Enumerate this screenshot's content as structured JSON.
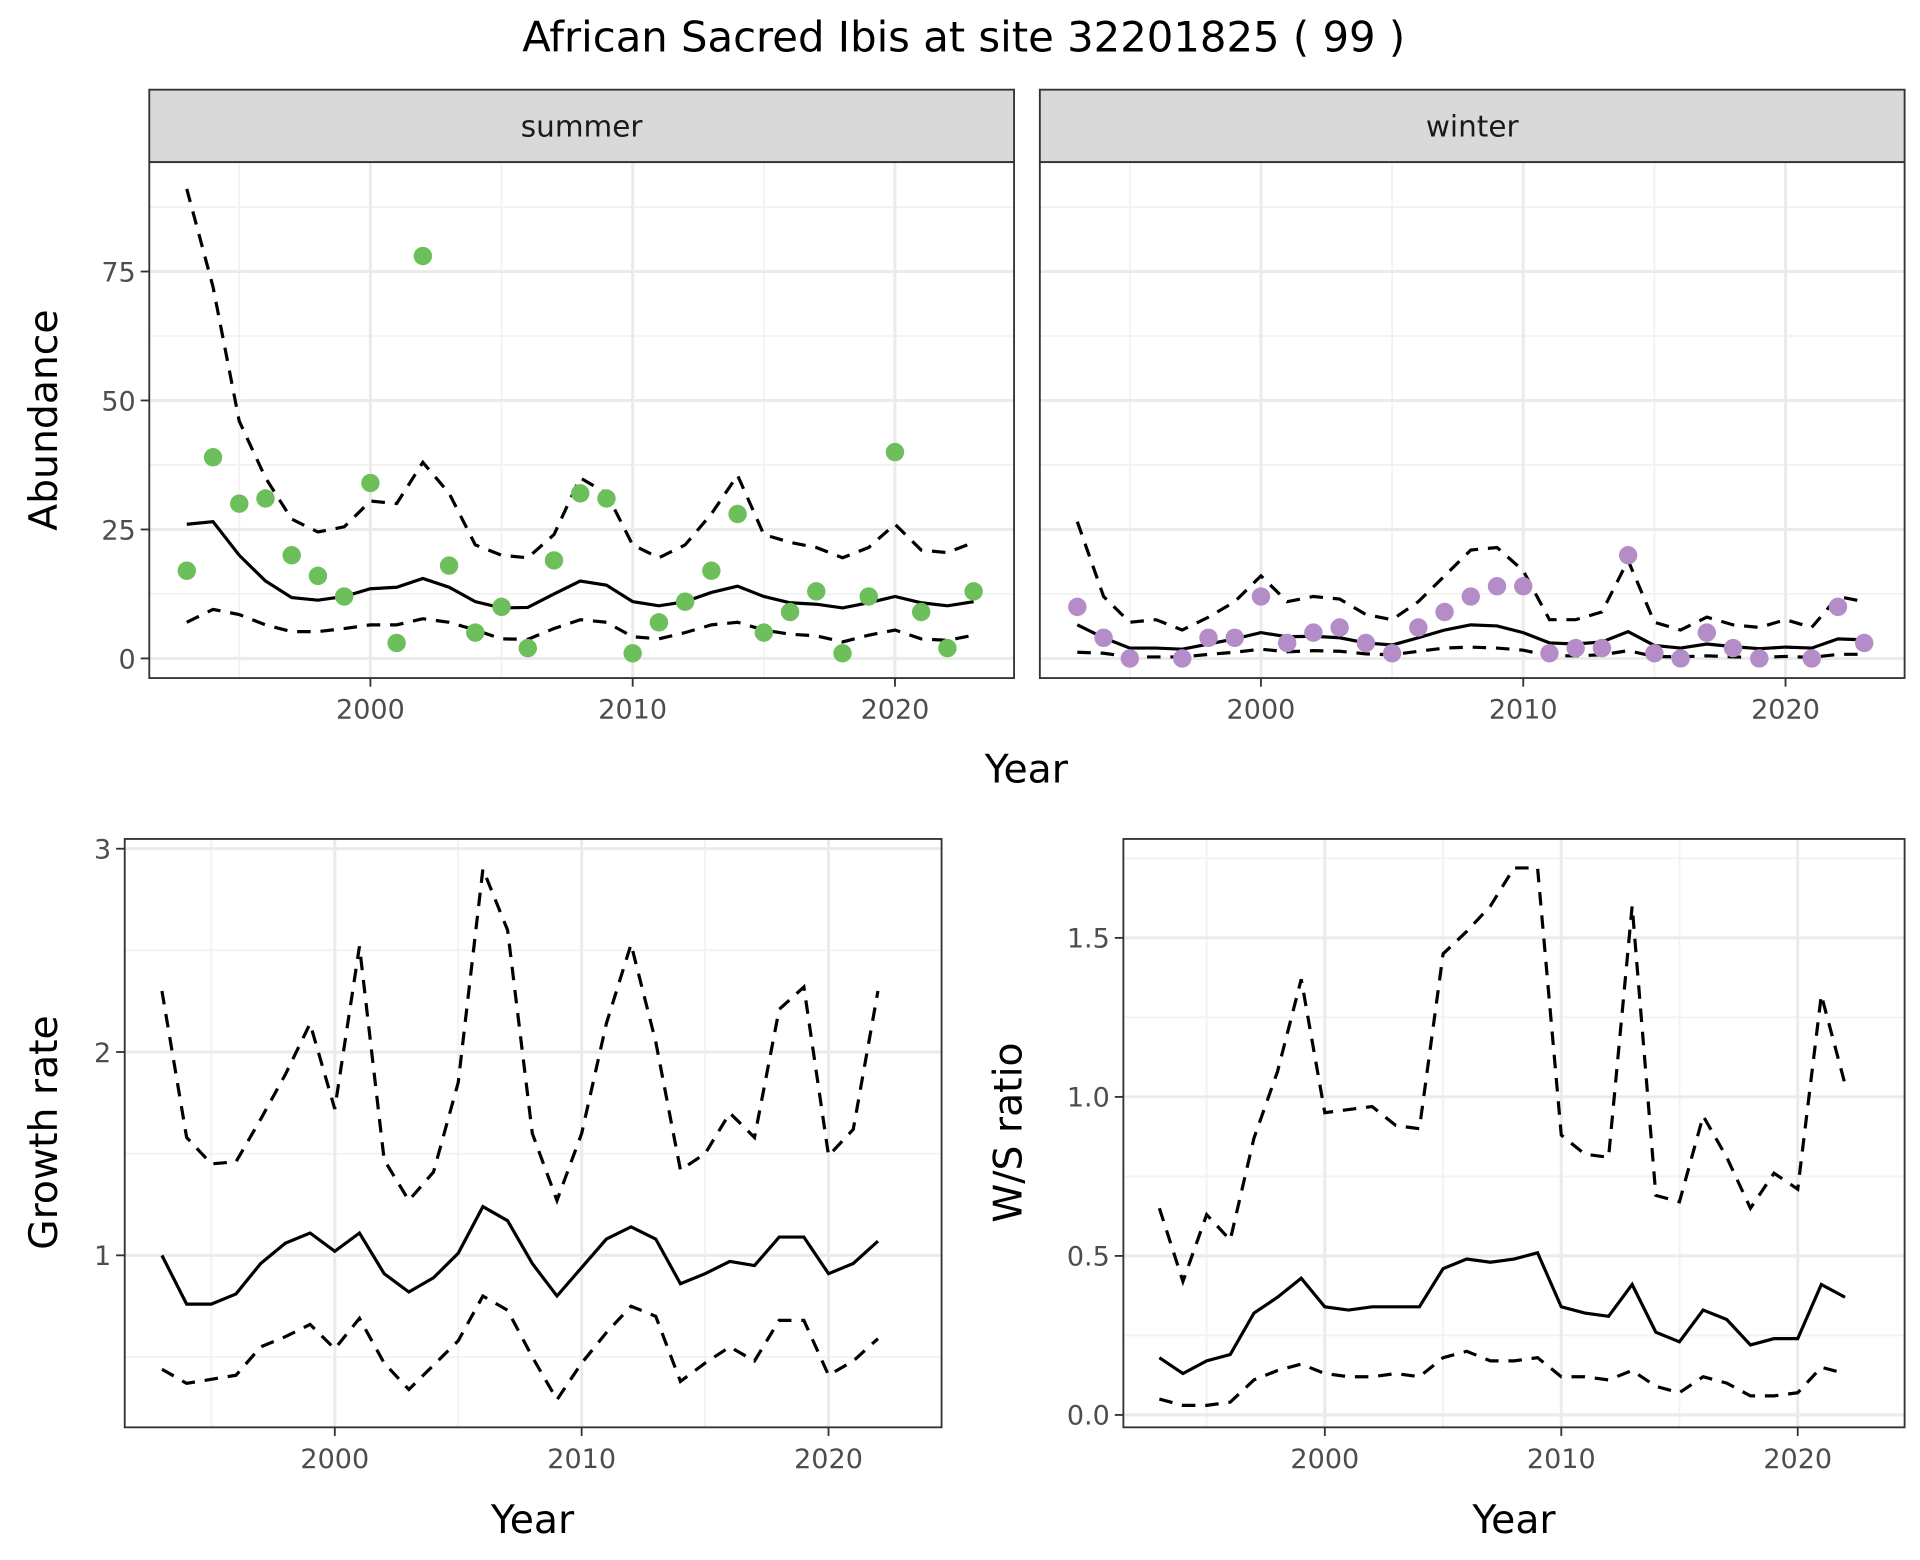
{
  "title": "African Sacred Ibis at site 32201825 ( 99 )",
  "colors": {
    "summer": "#6dbf5b",
    "winter": "#b48cc8",
    "line": "#000000"
  },
  "chart_data": [
    {
      "type": "scatter",
      "panel": "summer",
      "strip_label": "summer",
      "xlabel": "Year",
      "ylabel": "Abundance",
      "xlim": [
        1991.57,
        2024.54
      ],
      "ylim": [
        -3.8,
        96.2
      ],
      "xticks": [
        2000,
        2010,
        2020
      ],
      "yticks": [
        0,
        25,
        50,
        75
      ],
      "x": [
        1993,
        1994,
        1995,
        1996,
        1997,
        1998,
        1999,
        2000,
        2001,
        2002,
        2003,
        2004,
        2005,
        2006,
        2007,
        2008,
        2009,
        2010,
        2011,
        2012,
        2013,
        2014,
        2015,
        2016,
        2017,
        2018,
        2019,
        2020,
        2021,
        2022,
        2023
      ],
      "points": [
        17,
        39,
        30,
        31,
        20,
        16,
        12,
        34,
        3,
        78,
        18,
        5,
        10,
        2,
        19,
        32,
        31,
        1,
        7,
        11,
        17,
        28,
        5,
        9,
        13,
        1,
        12,
        40,
        9,
        2,
        13
      ],
      "mean": [
        26,
        26.5,
        20,
        15,
        11.8,
        11.3,
        12,
        13.5,
        13.8,
        15.5,
        13.8,
        11,
        9.8,
        9.9,
        12.5,
        15,
        14.2,
        11,
        10.2,
        11,
        12.8,
        14,
        12,
        10.8,
        10.5,
        9.8,
        10.8,
        12,
        10.8,
        10.2,
        11
      ],
      "upper": [
        91,
        72,
        46,
        35,
        27,
        24.5,
        25.5,
        30.5,
        30,
        38,
        32,
        22,
        20,
        19.5,
        24,
        35,
        32,
        22,
        19.5,
        22,
        28,
        35.5,
        24,
        22.5,
        21.5,
        19.5,
        21.5,
        26,
        21,
        20.5,
        22.5
      ],
      "lower": [
        7,
        9.5,
        8.5,
        6.5,
        5.2,
        5.2,
        5.8,
        6.5,
        6.5,
        7.7,
        7,
        5.5,
        3.8,
        3.7,
        5.8,
        7.5,
        7,
        4.2,
        3.8,
        5,
        6.5,
        7,
        5.5,
        4.7,
        4.4,
        3.2,
        4.5,
        5.5,
        3.8,
        3.5,
        4.5
      ]
    },
    {
      "type": "scatter",
      "panel": "winter",
      "strip_label": "winter",
      "xlabel": "Year",
      "ylabel": "Abundance",
      "xlim": [
        1991.57,
        2024.54
      ],
      "ylim": [
        -3.8,
        96.2
      ],
      "xticks": [
        2000,
        2010,
        2020
      ],
      "yticks": [
        0,
        25,
        50,
        75
      ],
      "x": [
        1993,
        1994,
        1995,
        1996,
        1997,
        1998,
        1999,
        2000,
        2001,
        2002,
        2003,
        2004,
        2005,
        2006,
        2007,
        2008,
        2009,
        2010,
        2011,
        2012,
        2013,
        2014,
        2015,
        2016,
        2017,
        2018,
        2019,
        2020,
        2021,
        2022,
        2023
      ],
      "points": [
        10,
        4,
        0,
        null,
        0,
        4,
        4,
        12,
        3,
        5,
        6,
        3,
        1,
        6,
        9,
        12,
        14,
        14,
        1,
        2,
        2,
        20,
        1,
        0,
        5,
        2,
        0,
        null,
        0,
        10,
        3
      ],
      "mean": [
        6.5,
        4,
        2,
        2,
        1.8,
        2.8,
        3.8,
        5,
        4.2,
        4.3,
        4,
        3,
        2.6,
        4,
        5.5,
        6.5,
        6.3,
        5,
        3,
        2.8,
        3.2,
        5.2,
        2.5,
        2,
        2.8,
        2.3,
        1.9,
        2.2,
        2,
        3.8,
        3.6
      ],
      "upper": [
        26.5,
        12,
        7,
        7.5,
        5.5,
        8,
        11,
        16,
        11,
        12,
        11.5,
        8.5,
        7.5,
        11,
        16,
        21,
        21.5,
        17,
        7.5,
        7.5,
        9,
        19,
        7,
        5.5,
        8,
        6.5,
        6,
        7.5,
        6,
        12,
        11
      ],
      "lower": [
        1.2,
        1,
        0.3,
        0.3,
        0.3,
        0.8,
        1.2,
        1.8,
        1.3,
        1.5,
        1.4,
        0.9,
        0.7,
        1.4,
        2,
        2.2,
        2,
        1.6,
        0.5,
        0.5,
        0.7,
        1.5,
        0.4,
        0.3,
        0.5,
        0.3,
        0.2,
        0.4,
        0.2,
        0.8,
        0.8
      ]
    },
    {
      "type": "line",
      "panel": "growth",
      "xlabel": "Year",
      "ylabel": "Growth rate",
      "xlim": [
        1991.49,
        2024.58
      ],
      "ylim": [
        0.154,
        3.048
      ],
      "xticks": [
        2000,
        2010,
        2020
      ],
      "yticks": [
        1,
        2,
        3
      ],
      "x": [
        1993,
        1994,
        1995,
        1996,
        1997,
        1998,
        1999,
        2000,
        2001,
        2002,
        2003,
        2004,
        2005,
        2006,
        2007,
        2008,
        2009,
        2010,
        2011,
        2012,
        2013,
        2014,
        2015,
        2016,
        2017,
        2018,
        2019,
        2020,
        2021,
        2022
      ],
      "mean": [
        1.0,
        0.76,
        0.76,
        0.81,
        0.96,
        1.06,
        1.11,
        1.02,
        1.11,
        0.91,
        0.82,
        0.89,
        1.01,
        1.24,
        1.17,
        0.96,
        0.8,
        0.94,
        1.08,
        1.14,
        1.08,
        0.86,
        0.91,
        0.97,
        0.95,
        1.09,
        1.09,
        0.91,
        0.96,
        1.07
      ],
      "upper": [
        2.3,
        1.58,
        1.45,
        1.46,
        1.67,
        1.89,
        2.14,
        1.72,
        2.52,
        1.47,
        1.27,
        1.41,
        1.85,
        2.9,
        2.6,
        1.6,
        1.27,
        1.6,
        2.14,
        2.53,
        2.05,
        1.42,
        1.5,
        1.7,
        1.58,
        2.21,
        2.32,
        1.49,
        1.62,
        2.3
      ],
      "lower": [
        0.44,
        0.37,
        0.39,
        0.41,
        0.55,
        0.6,
        0.66,
        0.54,
        0.69,
        0.47,
        0.34,
        0.46,
        0.58,
        0.8,
        0.73,
        0.5,
        0.29,
        0.47,
        0.62,
        0.75,
        0.7,
        0.38,
        0.47,
        0.55,
        0.48,
        0.68,
        0.68,
        0.41,
        0.48,
        0.59
      ]
    },
    {
      "type": "line",
      "panel": "ratio",
      "xlabel": "Year",
      "ylabel": "W/S ratio",
      "xlim": [
        1991.48,
        2024.52
      ],
      "ylim": [
        -0.039,
        1.811
      ],
      "xticks": [
        2000,
        2010,
        2020
      ],
      "yticks": [
        0.0,
        0.5,
        1.0,
        1.5
      ],
      "ytick_labels": [
        "0.0",
        "0.5",
        "1.0",
        "1.5"
      ],
      "x": [
        1993,
        1994,
        1995,
        1996,
        1997,
        1998,
        1999,
        2000,
        2001,
        2002,
        2003,
        2004,
        2005,
        2006,
        2007,
        2008,
        2009,
        2010,
        2011,
        2012,
        2013,
        2014,
        2015,
        2016,
        2017,
        2018,
        2019,
        2020,
        2021,
        2022
      ],
      "mean": [
        0.18,
        0.13,
        0.17,
        0.19,
        0.32,
        0.37,
        0.43,
        0.34,
        0.33,
        0.34,
        0.34,
        0.34,
        0.46,
        0.49,
        0.48,
        0.49,
        0.51,
        0.34,
        0.32,
        0.31,
        0.41,
        0.26,
        0.23,
        0.33,
        0.3,
        0.22,
        0.24,
        0.24,
        0.41,
        0.37
      ],
      "upper": [
        0.65,
        0.42,
        0.63,
        0.55,
        0.87,
        1.08,
        1.37,
        0.95,
        0.96,
        0.97,
        0.91,
        0.9,
        1.45,
        1.52,
        1.6,
        1.72,
        1.72,
        0.88,
        0.82,
        0.81,
        1.6,
        0.69,
        0.67,
        0.94,
        0.81,
        0.65,
        0.76,
        0.71,
        1.32,
        1.04
      ],
      "lower": [
        0.05,
        0.03,
        0.03,
        0.04,
        0.11,
        0.14,
        0.16,
        0.13,
        0.12,
        0.12,
        0.13,
        0.12,
        0.18,
        0.2,
        0.17,
        0.17,
        0.18,
        0.12,
        0.12,
        0.11,
        0.14,
        0.09,
        0.07,
        0.12,
        0.1,
        0.06,
        0.06,
        0.07,
        0.15,
        0.13
      ]
    }
  ],
  "shared_xlabel_top": "Year"
}
